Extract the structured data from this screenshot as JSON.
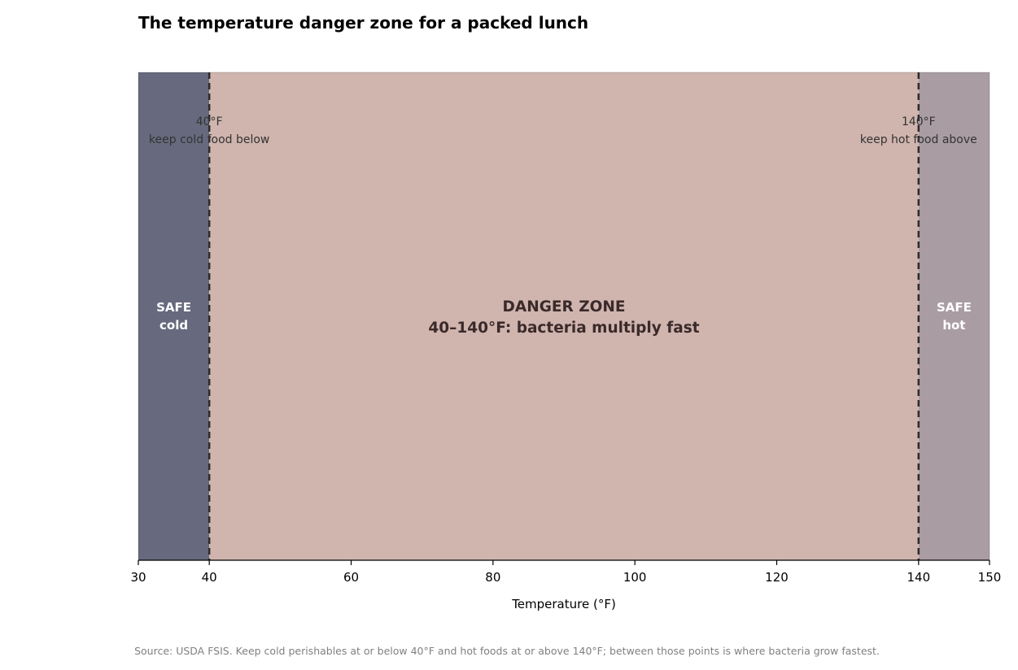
{
  "chart_data": {
    "type": "bar",
    "title": "The temperature danger zone for a packed lunch",
    "xlabel": "Temperature (°F)",
    "ylabel": "",
    "xlim": [
      30,
      150
    ],
    "xticks": [
      30,
      40,
      60,
      80,
      100,
      120,
      140,
      150
    ],
    "grid": false,
    "zones": [
      {
        "from": 30,
        "to": 40,
        "label_lines": [
          "SAFE",
          "cold"
        ],
        "color": "#676a7e"
      },
      {
        "from": 40,
        "to": 140,
        "label_lines": [
          "DANGER ZONE",
          "40–140°F: bacteria multiply fast"
        ],
        "color": "#d0b4ae"
      },
      {
        "from": 140,
        "to": 150,
        "label_lines": [
          "SAFE",
          "hot"
        ],
        "color": "#aa9ca3"
      }
    ],
    "thresholds": [
      {
        "value": 40,
        "label_lines": [
          "40°F",
          "keep cold food below"
        ]
      },
      {
        "value": 140,
        "label_lines": [
          "140°F",
          "keep hot food above"
        ]
      }
    ],
    "source": "Source: USDA FSIS. Keep cold perishables at or below 40°F and hot foods at or above 140°F; between those points is where bacteria grow fastest."
  }
}
